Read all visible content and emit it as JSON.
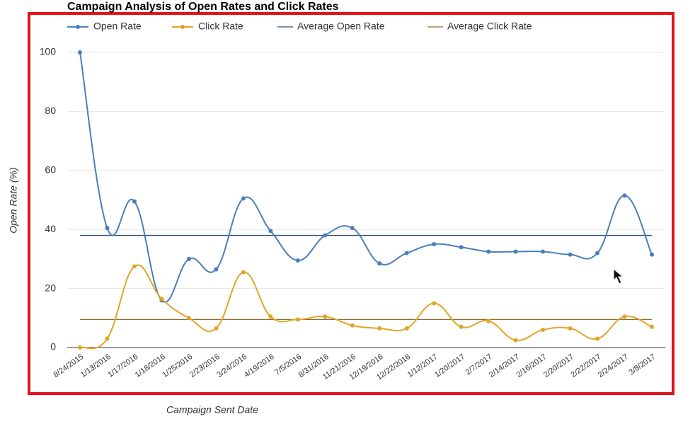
{
  "chart_data": {
    "type": "line",
    "title": "Campaign Analysis of Open Rates and Click Rates",
    "x_label": "Campaign Sent Date",
    "y_label": "Open Rate (%)",
    "categories": [
      "8/24/2015",
      "1/13/2016",
      "1/17/2016",
      "1/18/2016",
      "1/25/2016",
      "2/23/2016",
      "3/24/2016",
      "4/19/2016",
      "7/5/2016",
      "8/31/2016",
      "11/21/2016",
      "12/19/2016",
      "12/22/2016",
      "1/12/2017",
      "1/20/2017",
      "2/7/2017",
      "2/14/2017",
      "2/16/2017",
      "2/20/2017",
      "2/22/2017",
      "2/24/2017",
      "3/8/2017"
    ],
    "series": [
      {
        "name": "Open Rate",
        "color": "#4a7ebb",
        "values": [
          100,
          40.5,
          49.5,
          16,
          30,
          26.5,
          50.5,
          39.5,
          29.5,
          38,
          40.5,
          28.5,
          32,
          35,
          34,
          32.5,
          32.5,
          32.5,
          31.5,
          32,
          51.5,
          31.5
        ]
      },
      {
        "name": "Click Rate",
        "color": "#e0a526",
        "values": [
          0,
          3,
          27.5,
          16.5,
          10,
          6.5,
          25.5,
          10.5,
          9.5,
          10.5,
          7.5,
          6.5,
          6.5,
          15,
          7,
          9,
          2.5,
          6,
          6.5,
          3,
          10.5,
          7
        ]
      }
    ],
    "reference_lines": [
      {
        "name": "Average Open Rate",
        "color": "#2c4f6e",
        "value": 38
      },
      {
        "name": "Average Click Rate",
        "color": "#8a6d2a",
        "value": 9.5
      }
    ],
    "ylim": [
      0,
      100
    ],
    "yticks": [
      0,
      20,
      40,
      60,
      80,
      100
    ],
    "grid": true
  }
}
